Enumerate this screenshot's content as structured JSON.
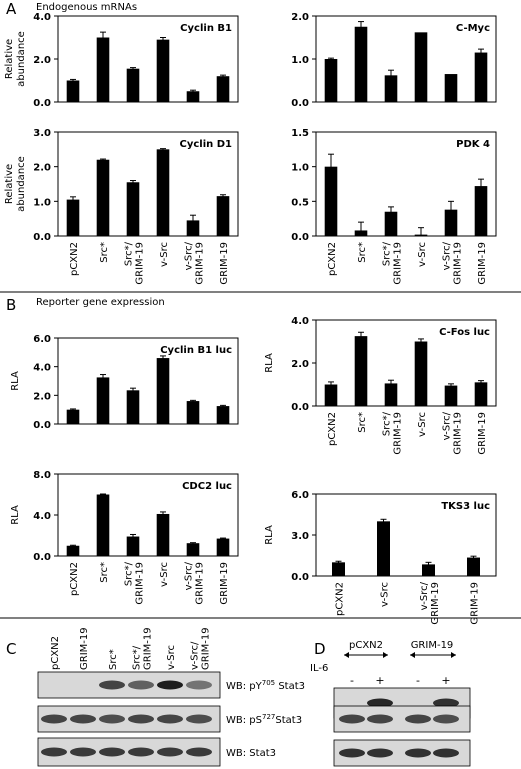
{
  "panel_labels": {
    "A": "A",
    "B": "B",
    "C": "C",
    "D": "D"
  },
  "section_titles": {
    "a": "Endogenous mRNAs",
    "b": "Reporter gene expression"
  },
  "chart_data": [
    {
      "id": "cyclinB1",
      "type": "bar",
      "title": "Cyclin B1",
      "ylabel": [
        "Relative",
        "abundance"
      ],
      "ylim": [
        0,
        4
      ],
      "yticks": [
        0,
        2,
        4
      ],
      "yticklabels": [
        "0.0",
        "2.0",
        "4.0"
      ],
      "categories": [
        "pCXN2",
        "Src*",
        "Src*/GRIM-19",
        "v-Src",
        "v-Src/GRIM-19",
        "GRIM-19"
      ],
      "xticklabels_shown": false,
      "values": [
        1.0,
        3.0,
        1.55,
        2.9,
        0.5,
        1.2
      ],
      "errors": [
        0.05,
        0.25,
        0.05,
        0.1,
        0.05,
        0.05
      ]
    },
    {
      "id": "cmyc",
      "type": "bar",
      "title": "C-Myc",
      "ylabel": [],
      "ylim": [
        0,
        2
      ],
      "yticks": [
        0,
        1,
        2
      ],
      "yticklabels": [
        "0.0",
        "1.0",
        "2.0"
      ],
      "categories": [
        "pCXN2",
        "Src*",
        "Src*/GRIM-19",
        "v-Src",
        "v-Src/GRIM-19",
        "GRIM-19"
      ],
      "xticklabels_shown": false,
      "values": [
        1.0,
        1.75,
        0.62,
        1.62,
        0.65,
        1.15
      ],
      "errors": [
        0.02,
        0.12,
        0.12,
        0.0,
        0.0,
        0.08
      ]
    },
    {
      "id": "cyclinD1",
      "type": "bar",
      "title": "Cyclin D1",
      "ylabel": [
        "Relative",
        "abundance"
      ],
      "ylim": [
        0,
        3
      ],
      "yticks": [
        0,
        1,
        2,
        3
      ],
      "yticklabels": [
        "0.0",
        "1.0",
        "2.0",
        "3.0"
      ],
      "categories": [
        "pCXN2",
        "Src*",
        "Src*/GRIM-19",
        "v-Src",
        "v-Src/GRIM-19",
        "GRIM-19"
      ],
      "xticklabels_shown": true,
      "xticklabels": [
        [
          "pCXN2"
        ],
        [
          "Src*"
        ],
        [
          "Src*/",
          "GRIM-19"
        ],
        [
          "v-Src"
        ],
        [
          "v-Src/",
          "GRIM-19"
        ],
        [
          "GRIM-19"
        ]
      ],
      "values": [
        1.05,
        2.2,
        1.55,
        2.5,
        0.45,
        1.15
      ],
      "errors": [
        0.08,
        0.02,
        0.05,
        0.02,
        0.15,
        0.04
      ]
    },
    {
      "id": "pdk4",
      "type": "bar",
      "title": "PDK 4",
      "ylabel": [],
      "ylim": [
        0,
        1.5
      ],
      "yticks": [
        0,
        0.5,
        1.0,
        1.5
      ],
      "yticklabels": [
        "0.0",
        "0.5",
        "1.0",
        "1.5"
      ],
      "categories": [
        "pCXN2",
        "Src*",
        "Src*/GRIM-19",
        "v-Src",
        "v-Src/GRIM-19",
        "GRIM-19"
      ],
      "xticklabels_shown": true,
      "xticklabels": [
        [
          "pCXN2"
        ],
        [
          "Src*"
        ],
        [
          "Src*/",
          "GRIM-19"
        ],
        [
          "v-Src"
        ],
        [
          "v-Src/",
          "GRIM-19"
        ],
        [
          "GRIM-19"
        ]
      ],
      "values": [
        1.0,
        0.08,
        0.35,
        0.02,
        0.38,
        0.72
      ],
      "errors": [
        0.18,
        0.12,
        0.07,
        0.1,
        0.12,
        0.1
      ]
    },
    {
      "id": "cyclinB1luc",
      "type": "bar",
      "title": "Cyclin B1 luc",
      "ylabel": [
        "RLA"
      ],
      "ylim": [
        0,
        6
      ],
      "yticks": [
        0,
        2,
        4,
        6
      ],
      "yticklabels": [
        "0.0",
        "2.0",
        "4.0",
        "6.0"
      ],
      "categories": [
        "pCXN2",
        "Src*",
        "Src*/GRIM-19",
        "v-Src",
        "v-Src/GRIM-19",
        "GRIM-19"
      ],
      "xticklabels_shown": false,
      "values": [
        1.0,
        3.25,
        2.35,
        4.6,
        1.6,
        1.25
      ],
      "errors": [
        0.05,
        0.2,
        0.15,
        0.15,
        0.05,
        0.05
      ]
    },
    {
      "id": "cfosluc",
      "type": "bar",
      "title": "C-Fos luc",
      "ylabel": [
        "RLA"
      ],
      "ylim": [
        0,
        4
      ],
      "yticks": [
        0,
        2,
        4
      ],
      "yticklabels": [
        "0.0",
        "2.0",
        "4.0"
      ],
      "categories": [
        "pCXN2",
        "Src*",
        "Src*/GRIM-19",
        "v-Src",
        "v-Src/GRIM-19",
        "GRIM-19"
      ],
      "xticklabels_shown": true,
      "xticklabels": [
        [
          "pCXN2"
        ],
        [
          "Src*"
        ],
        [
          "Src*/",
          "GRIM-19"
        ],
        [
          "v-Src"
        ],
        [
          "v-Src/",
          "GRIM-19"
        ],
        [
          "GRIM-19"
        ]
      ],
      "values": [
        1.0,
        3.25,
        1.05,
        3.0,
        0.95,
        1.1
      ],
      "errors": [
        0.12,
        0.18,
        0.15,
        0.12,
        0.08,
        0.08
      ]
    },
    {
      "id": "cdc2luc",
      "type": "bar",
      "title": "CDC2 luc",
      "ylabel": [
        "RLA"
      ],
      "ylim": [
        0,
        8
      ],
      "yticks": [
        0,
        4,
        8
      ],
      "yticklabels": [
        "0.0",
        "4.0",
        "8.0"
      ],
      "categories": [
        "pCXN2",
        "Src*",
        "Src*/GRIM-19",
        "v-Src",
        "v-Src/GRIM-19",
        "GRIM-19"
      ],
      "xticklabels_shown": true,
      "xticklabels": [
        [
          "pCXN2"
        ],
        [
          "Src*"
        ],
        [
          "Src*/",
          "GRIM-19"
        ],
        [
          "v-Src"
        ],
        [
          "v-Src/",
          "GRIM-19"
        ],
        [
          "GRIM-19"
        ]
      ],
      "values": [
        1.0,
        6.0,
        1.9,
        4.1,
        1.25,
        1.7
      ],
      "errors": [
        0.05,
        0.05,
        0.2,
        0.2,
        0.05,
        0.05
      ]
    },
    {
      "id": "tks3luc",
      "type": "bar",
      "title": "TKS3  luc",
      "ylabel": [
        "RLA"
      ],
      "ylim": [
        0,
        6
      ],
      "yticks": [
        0,
        3,
        6
      ],
      "yticklabels": [
        "0.0",
        "3.0",
        "6.0"
      ],
      "categories": [
        "pCXN2",
        "v-Src",
        "v-Src/GRIM-19",
        "GRIM-19"
      ],
      "xticklabels_shown": true,
      "xticklabels": [
        [
          "pCXN2"
        ],
        [
          "v-Src"
        ],
        [
          "v-Src/",
          "GRIM-19"
        ],
        [
          "GRIM-19"
        ]
      ],
      "values": [
        1.0,
        4.0,
        0.85,
        1.35
      ],
      "errors": [
        0.08,
        0.15,
        0.15,
        0.1
      ]
    }
  ],
  "blot_c": {
    "lanes": [
      [
        "pCXN2"
      ],
      [
        "GRIM-19"
      ],
      [
        "Src*"
      ],
      [
        "Src*/",
        "GRIM-19"
      ],
      [
        "v-Src"
      ],
      [
        "v-Src/",
        "GRIM-19"
      ]
    ],
    "rows": [
      {
        "label_prefix": "WB: pY",
        "label_sup": "705",
        "label_suffix": " Stat3",
        "intensity": [
          0,
          0,
          0.75,
          0.6,
          0.95,
          0.5
        ]
      },
      {
        "label_prefix": "WB: pS",
        "label_sup": "727",
        "label_suffix": "Stat3",
        "intensity": [
          0.75,
          0.75,
          0.7,
          0.75,
          0.75,
          0.7
        ]
      },
      {
        "label_prefix": "WB: Stat3",
        "label_sup": "",
        "label_suffix": "",
        "intensity": [
          0.8,
          0.8,
          0.8,
          0.8,
          0.8,
          0.8
        ]
      }
    ]
  },
  "blot_d": {
    "groups": [
      "pCXN2",
      "GRIM-19"
    ],
    "treatment_label": "IL-6",
    "signs": [
      "-",
      "+",
      "-",
      "+"
    ],
    "rows": [
      {
        "intensity": [
          0,
          0.9,
          0,
          0.85
        ]
      },
      {
        "intensity": [
          0.75,
          0.75,
          0.75,
          0.7
        ]
      },
      {
        "intensity": [
          0.85,
          0.85,
          0.85,
          0.85
        ]
      }
    ]
  }
}
